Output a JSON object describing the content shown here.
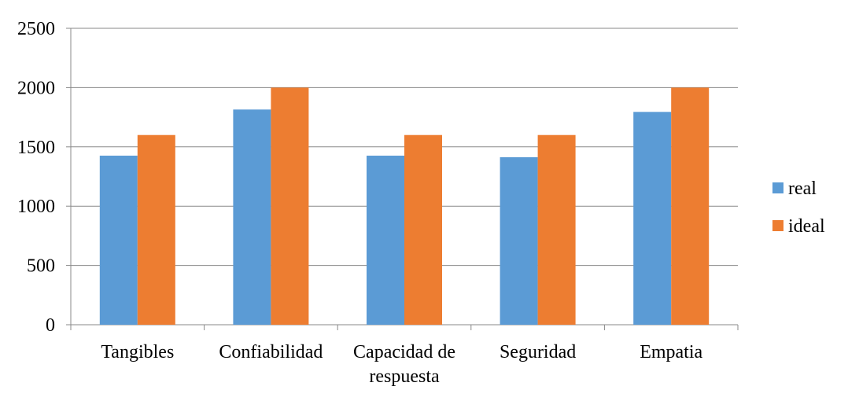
{
  "chart_data": {
    "type": "bar",
    "categories": [
      "Tangibles",
      "Confiabilidad",
      "Capacidad de respuesta",
      "Seguridad",
      "Empatia"
    ],
    "category_label_lines": [
      [
        "Tangibles"
      ],
      [
        "Confiabilidad"
      ],
      [
        "Capacidad de",
        "respuesta"
      ],
      [
        "Seguridad"
      ],
      [
        "Empatia"
      ]
    ],
    "series": [
      {
        "name": "real",
        "color": "#5B9BD5",
        "values": [
          1426,
          1815,
          1426,
          1413,
          1795
        ]
      },
      {
        "name": "ideal",
        "color": "#ED7D31",
        "values": [
          1600,
          2000,
          1600,
          1600,
          2000
        ]
      }
    ],
    "title": "",
    "xlabel": "",
    "ylabel": "",
    "ylim": [
      0,
      2500
    ],
    "yticks": [
      0,
      500,
      1000,
      1500,
      2000,
      2500
    ],
    "grid": true,
    "legend_position": "right"
  }
}
